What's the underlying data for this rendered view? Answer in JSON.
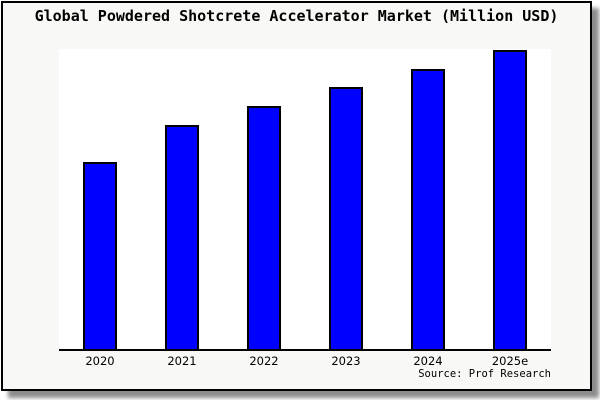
{
  "title": "Global Powdered Shotcrete Accelerator Market (Million USD)",
  "source_note": "Source: Prof Research",
  "colors": {
    "bar_fill": "#0000ff",
    "bar_border": "#000000",
    "axis": "#000000",
    "plot_background": "#ffffff",
    "box_background": "#f8f8f6",
    "box_border": "#000000",
    "shadow": "#8a8a8a",
    "text": "#000000"
  },
  "chart_data": {
    "type": "bar",
    "title": "Global Powdered Shotcrete Accelerator Market (Million USD)",
    "categories": [
      "2020",
      "2021",
      "2022",
      "2023",
      "2024",
      "2025e"
    ],
    "values_relative_to_max_pct": [
      62.7,
      75.0,
      81.2,
      87.7,
      93.7,
      100
    ],
    "bar_height_pct_of_plot": [
      62.5,
      74.8,
      81.0,
      87.4,
      93.4,
      99.7
    ],
    "xlabel": "",
    "ylabel": "",
    "y_axis_tick_labels": "none (y-axis unlabeled, values relative)",
    "gridlines": false,
    "legend": false,
    "annotation": "Source: Prof Research"
  }
}
